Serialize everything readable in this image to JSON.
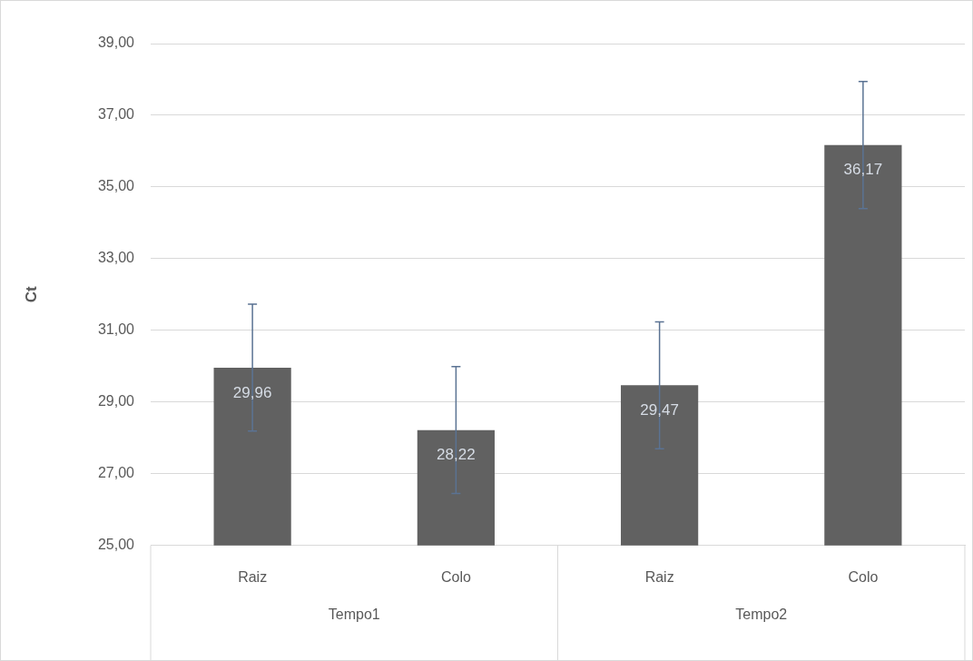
{
  "chart_data": {
    "type": "bar",
    "ylabel": "Ct",
    "categories": [
      "Raiz",
      "Colo",
      "Raiz",
      "Colo"
    ],
    "values": [
      29.96,
      28.22,
      29.47,
      36.17
    ],
    "errors": [
      1.77,
      1.77,
      1.77,
      1.77
    ],
    "value_labels": [
      "29,96",
      "28,22",
      "29,47",
      "36,17"
    ],
    "color": "#616161",
    "ylim": [
      25,
      39
    ],
    "yticks": [
      {
        "value": 25,
        "label": "25,00"
      },
      {
        "value": 27,
        "label": "27,00"
      },
      {
        "value": 29,
        "label": "29,00"
      },
      {
        "value": 31,
        "label": "31,00"
      },
      {
        "value": 33,
        "label": "33,00"
      },
      {
        "value": 35,
        "label": "35,00"
      },
      {
        "value": 37,
        "label": "37,00"
      },
      {
        "value": 39,
        "label": "39,00"
      }
    ],
    "annotations": [
      "Tempo1",
      "Tempo2"
    ],
    "grid": "y",
    "legend": false
  }
}
